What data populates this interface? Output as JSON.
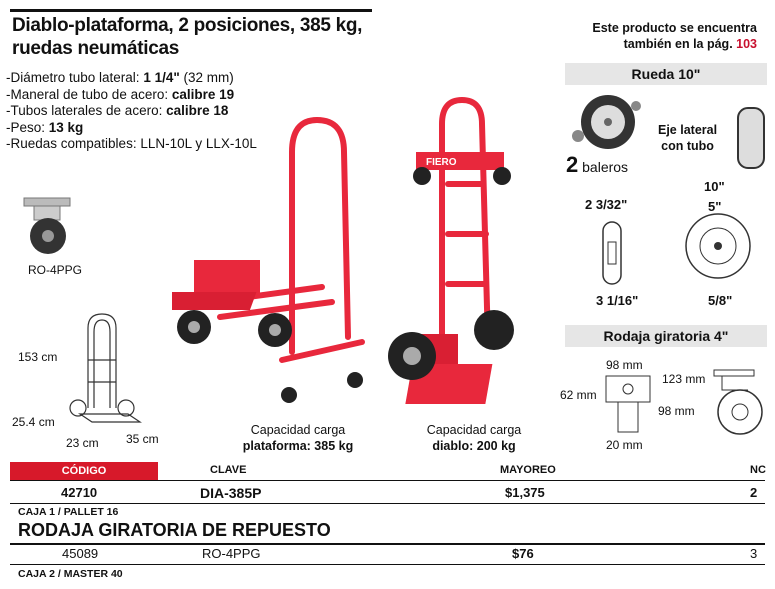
{
  "title": "Diablo-plataforma, 2 posiciones, 385 kg, ruedas neumáticas",
  "specs": [
    {
      "label": "-Diámetro tubo lateral: ",
      "value": "1 1/4\"",
      "extra": " (32 mm)"
    },
    {
      "label": "-Maneral de tubo de acero: ",
      "value": "calibre 19",
      "extra": ""
    },
    {
      "label": "-Tubos laterales de acero: ",
      "value": "calibre 18",
      "extra": ""
    },
    {
      "label": "-Peso: ",
      "value": "13 kg",
      "extra": ""
    },
    {
      "label": "-Ruedas compatibles: LLN-10L y LLX-10L",
      "value": "",
      "extra": ""
    }
  ],
  "note": {
    "line1": "Este producto se encuentra",
    "line2": "también en la pág. ",
    "page": "103"
  },
  "wheel": {
    "heading": "Rueda 10\"",
    "bearings_num": "2",
    "bearings_label": " baleros",
    "axle_label_1": "Eje lateral",
    "axle_label_2": "con tubo",
    "dim_a": "2 3/32\"",
    "dim_b": "3 1/16\"",
    "dim_c": "10\"",
    "dim_d": "5\"",
    "dim_e": "5/8\""
  },
  "caster": {
    "heading": "Rodaja giratoria 4\"",
    "dim_w": "98 mm",
    "dim_h": "62 mm",
    "dim_b": "20 mm",
    "dim_t": "123 mm",
    "dim_d": "98 mm"
  },
  "ro_label": "RO-4PPG",
  "dims": {
    "h1": "153 cm",
    "h2": "25.4 cm",
    "w": "23 cm",
    "d": "35 cm"
  },
  "captions": [
    {
      "line1": "Capacidad carga",
      "line2": "plataforma: 385 kg"
    },
    {
      "line1": "Capacidad carga",
      "line2": "diablo: 200 kg"
    }
  ],
  "brand": "FIERO",
  "table": {
    "headers": [
      "CÓDIGO",
      "CLAVE",
      "MAYOREO",
      "NC"
    ],
    "rows": [
      {
        "codigo": "42710",
        "clave": "DIA-385P",
        "mayoreo": "$1,375",
        "nc": "2",
        "caja": "CAJA 1 / PALLET 16"
      }
    ],
    "section2_title": "RODAJA GIRATORIA DE REPUESTO",
    "rows2": [
      {
        "codigo": "45089",
        "clave": "RO-4PPG",
        "mayoreo": "$76",
        "nc": "3",
        "caja": "CAJA 2 / MASTER 40"
      }
    ]
  },
  "colors": {
    "accent": "#d7192a",
    "cart_red": "#e8283c"
  }
}
